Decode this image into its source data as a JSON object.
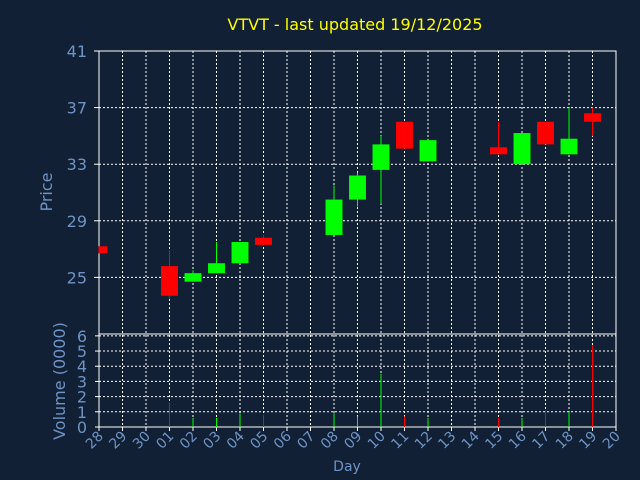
{
  "colors": {
    "background": "#112034",
    "grid": "#ffffff",
    "axis_text": "#6f93c4",
    "title": "#ffff00",
    "up": "#00ff00",
    "down": "#ff0000"
  },
  "chart_data": {
    "type": "candlestick",
    "title": "VTVT - last updated 19/12/2025",
    "xlabel": "Day",
    "ylabel": "Price",
    "volume_label": "Volume (0000)",
    "price_ylim": [
      21,
      41
    ],
    "price_ticks": [
      "41",
      "37",
      "33",
      "29",
      "25"
    ],
    "volume_ylim": [
      0,
      6
    ],
    "volume_ticks": [
      "6",
      "5",
      "4",
      "3",
      "2",
      "1",
      "0"
    ],
    "x_labels": [
      "28",
      "29",
      "30",
      "01",
      "02",
      "03",
      "04",
      "05",
      "06",
      "07",
      "08",
      "09",
      "10",
      "11",
      "12",
      "13",
      "14",
      "15",
      "16",
      "17",
      "18",
      "19",
      "20"
    ],
    "grid": true,
    "candles": [
      {
        "day": "28",
        "open": 27.2,
        "high": 27.2,
        "low": 26.7,
        "close": 26.7,
        "volume": 0.0
      },
      {
        "day": "01",
        "open": 25.8,
        "high": 26.9,
        "low": 23.5,
        "close": 23.7,
        "volume": 1.6
      },
      {
        "day": "02",
        "open": 24.7,
        "high": 25.5,
        "low": 24.7,
        "close": 25.3,
        "volume": 0.6
      },
      {
        "day": "03",
        "open": 25.3,
        "high": 27.5,
        "low": 25.3,
        "close": 26.0,
        "volume": 0.6
      },
      {
        "day": "04",
        "open": 26.0,
        "high": 27.5,
        "low": 26.0,
        "close": 27.5,
        "volume": 0.9
      },
      {
        "day": "05",
        "open": 27.8,
        "high": 28.0,
        "low": 27.3,
        "close": 27.3,
        "volume": 0.8
      },
      {
        "day": "08",
        "open": 28.0,
        "high": 31.5,
        "low": 28.0,
        "close": 30.5,
        "volume": 0.9
      },
      {
        "day": "09",
        "open": 30.5,
        "high": 32.4,
        "low": 30.0,
        "close": 32.2,
        "volume": 0.7
      },
      {
        "day": "10",
        "open": 32.6,
        "high": 35.0,
        "low": 30.2,
        "close": 34.4,
        "volume": 3.5
      },
      {
        "day": "11",
        "open": 36.0,
        "high": 36.0,
        "low": 34.1,
        "close": 34.1,
        "volume": 0.7
      },
      {
        "day": "12",
        "open": 33.2,
        "high": 34.7,
        "low": 33.2,
        "close": 34.7,
        "volume": 0.6
      },
      {
        "day": "15",
        "open": 34.2,
        "high": 36.0,
        "low": 33.7,
        "close": 33.7,
        "volume": 0.6
      },
      {
        "day": "16",
        "open": 33.0,
        "high": 35.2,
        "low": 33.0,
        "close": 35.2,
        "volume": 0.6
      },
      {
        "day": "17",
        "open": 36.0,
        "high": 36.0,
        "low": 34.4,
        "close": 34.4,
        "volume": 1.1
      },
      {
        "day": "18",
        "open": 33.7,
        "high": 37.0,
        "low": 33.7,
        "close": 34.8,
        "volume": 1.0
      },
      {
        "day": "19",
        "open": 36.6,
        "high": 37.0,
        "low": 35.0,
        "close": 36.0,
        "volume": 5.4
      }
    ]
  }
}
